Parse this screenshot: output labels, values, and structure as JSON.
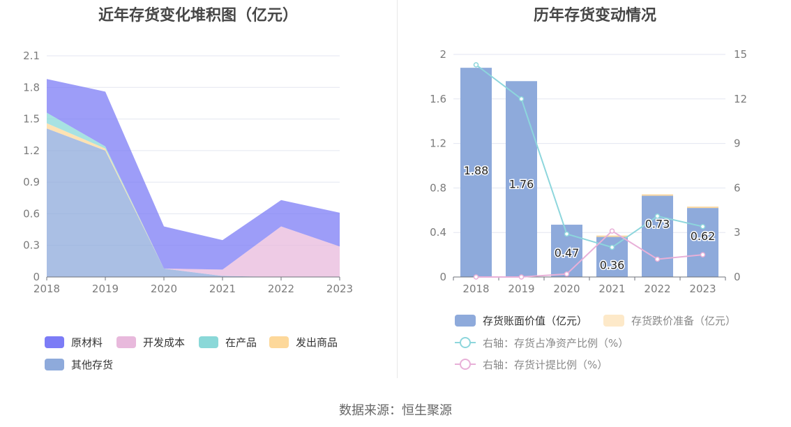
{
  "left_chart": {
    "title": "近年存货变化堆积图（亿元）",
    "chart_data": {
      "type": "area",
      "stacked": true,
      "x": [
        "2018",
        "2019",
        "2020",
        "2021",
        "2022",
        "2023"
      ],
      "ylim": [
        0,
        2.1
      ],
      "yticks": [
        "0",
        "0.3",
        "0.6",
        "0.9",
        "1.2",
        "1.5",
        "1.8",
        "2.1"
      ],
      "grid": true,
      "legend_position": "bottom",
      "series": [
        {
          "name": "其他存货",
          "color": "#8eaadb",
          "values": [
            1.41,
            1.2,
            0.08,
            0.01,
            0.0,
            0.0
          ]
        },
        {
          "name": "发出商品",
          "color": "#fdd89a",
          "values": [
            0.05,
            0.02,
            0.0,
            0.0,
            0.0,
            0.0
          ]
        },
        {
          "name": "在产品",
          "color": "#8ad8d8",
          "values": [
            0.1,
            0.02,
            0.0,
            0.0,
            0.0,
            0.0
          ]
        },
        {
          "name": "开发成本",
          "color": "#e8b9dc",
          "values": [
            0.0,
            0.0,
            0.0,
            0.06,
            0.48,
            0.29
          ]
        },
        {
          "name": "原材料",
          "color": "#7c7cf6",
          "values": [
            0.32,
            0.52,
            0.4,
            0.28,
            0.25,
            0.32
          ]
        }
      ],
      "legend_order": [
        "原材料",
        "开发成本",
        "在产品",
        "发出商品",
        "其他存货"
      ]
    }
  },
  "right_chart": {
    "title": "历年存货变动情况",
    "chart_data": {
      "type": "bar",
      "categories": [
        "2018",
        "2019",
        "2020",
        "2021",
        "2022",
        "2023"
      ],
      "ylim": [
        0,
        2
      ],
      "yticks": [
        "0",
        "0.4",
        "0.8",
        "1.2",
        "1.6",
        "2"
      ],
      "y2lim": [
        0,
        15
      ],
      "y2ticks": [
        "0",
        "3",
        "6",
        "9",
        "12",
        "15"
      ],
      "grid": true,
      "legend_position": "bottom",
      "bar_series": [
        {
          "name": "存货账面价值（亿元）",
          "color": "#8eaadb",
          "values": [
            1.88,
            1.76,
            0.47,
            0.36,
            0.73,
            0.62
          ],
          "labels": [
            "1.88",
            "1.76",
            "0.47",
            "0.36",
            "0.73",
            "0.62"
          ]
        },
        {
          "name": "存货跌价准备（亿元）",
          "color": "#fde9c9",
          "values": [
            0.0,
            0.0,
            0.0,
            0.01,
            0.01,
            0.01
          ]
        }
      ],
      "line_series": [
        {
          "name": "右轴：存货占净资产比例（%）",
          "color": "#8dd6dc",
          "values": [
            14.3,
            12.0,
            2.9,
            2.0,
            4.1,
            3.4
          ]
        },
        {
          "name": "右轴：存货计提比例（%）",
          "color": "#e8b0d8",
          "values": [
            0.0,
            0.0,
            0.2,
            3.1,
            1.2,
            1.5
          ]
        }
      ]
    }
  },
  "source_text": "数据来源：恒生聚源"
}
